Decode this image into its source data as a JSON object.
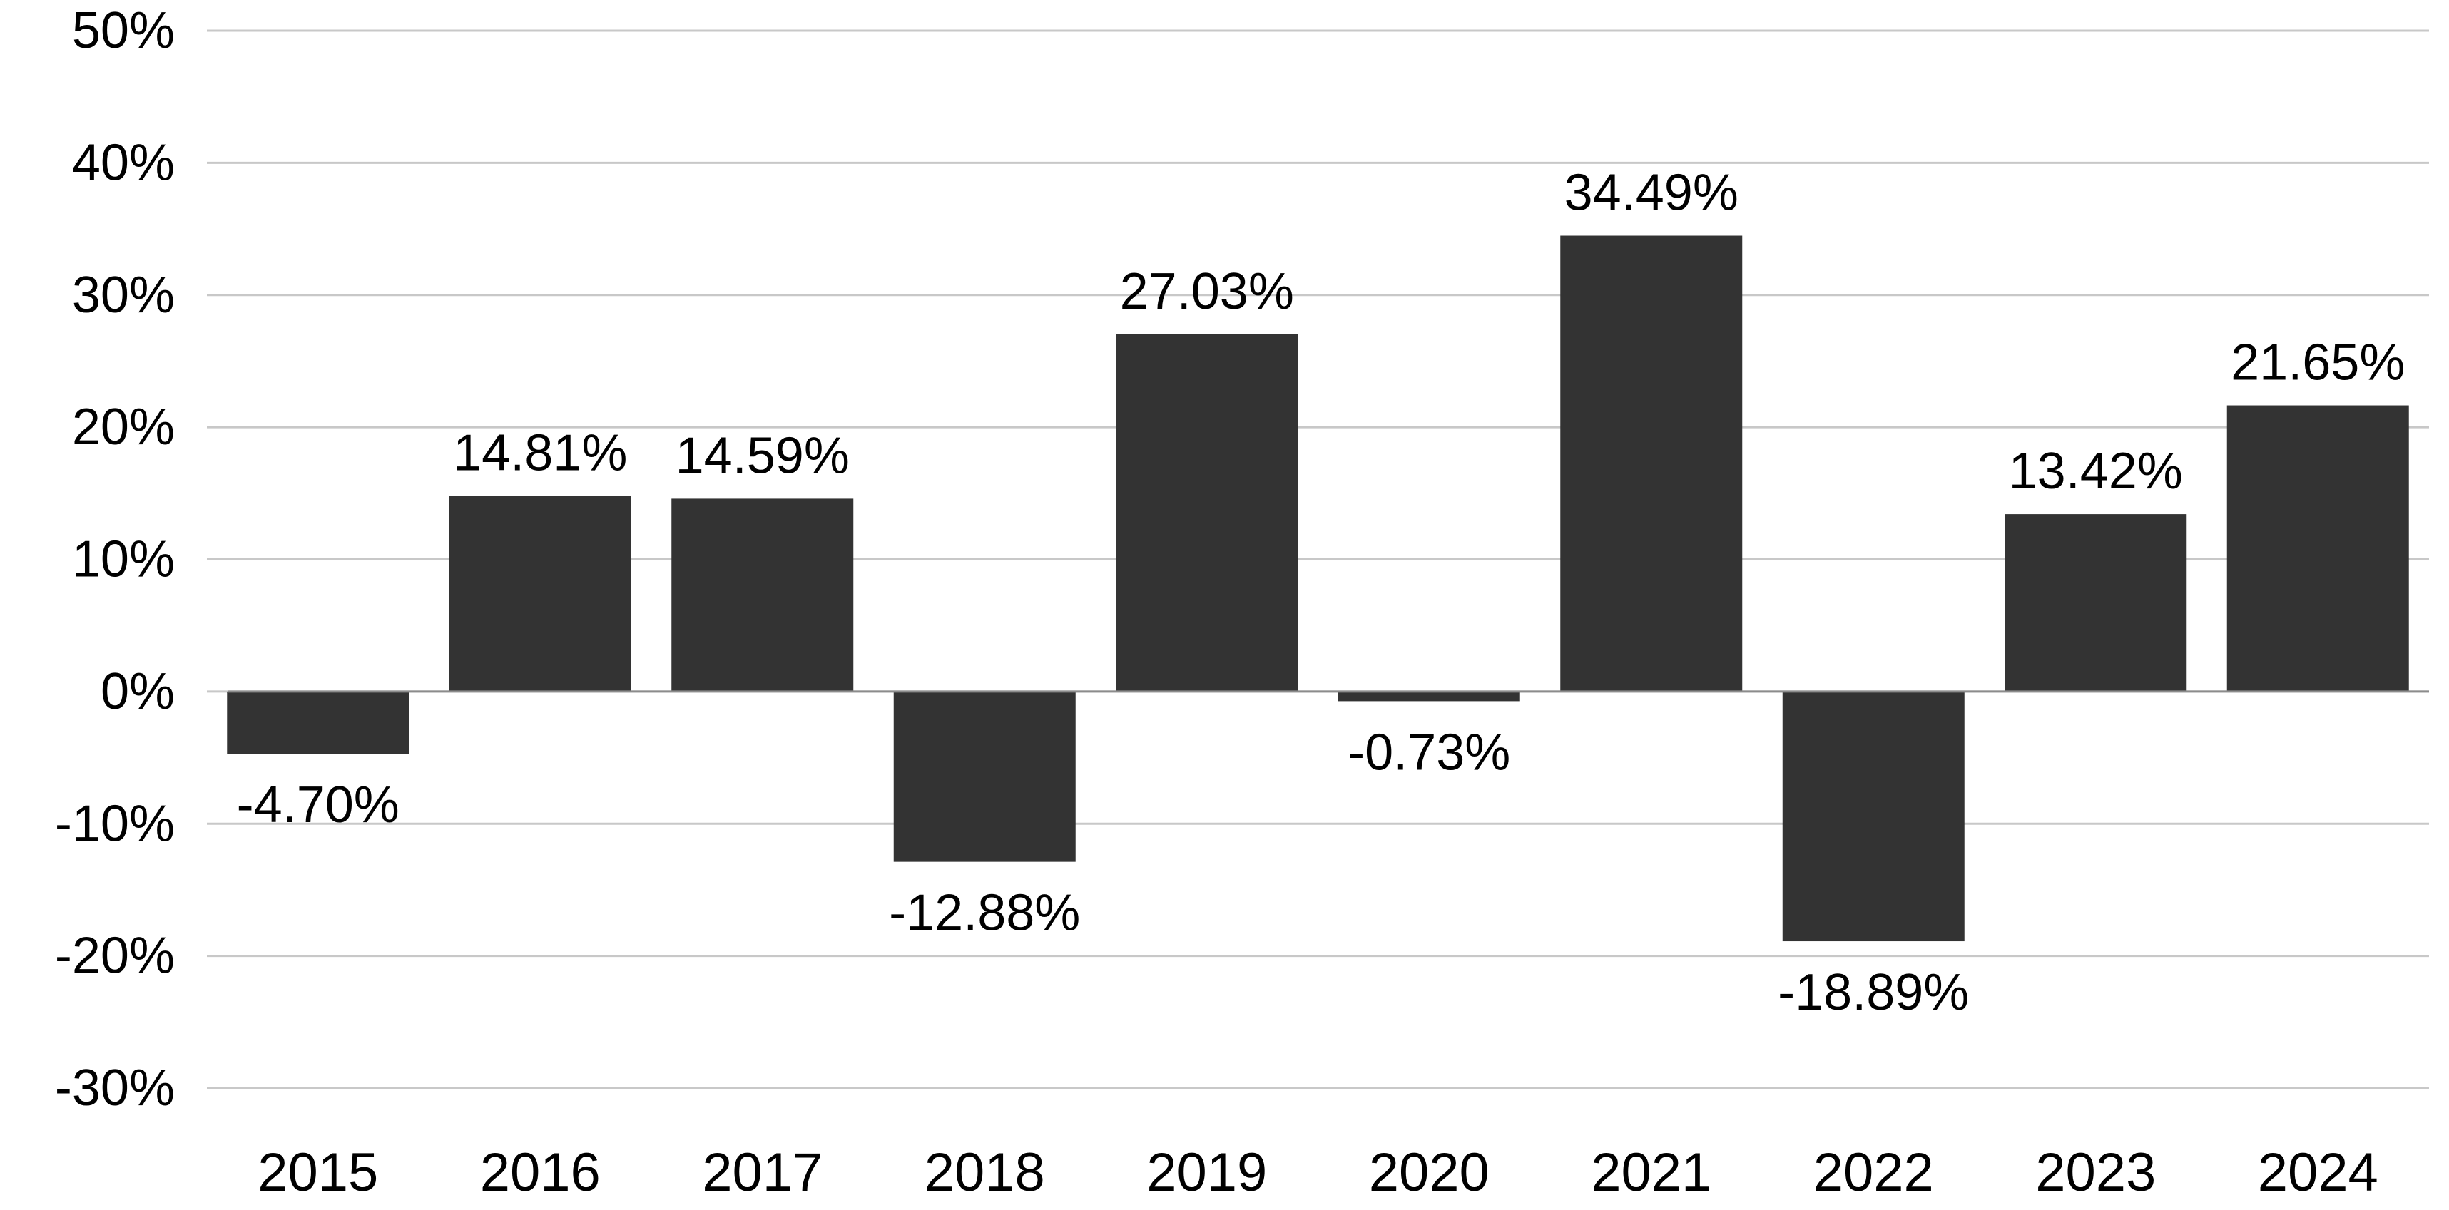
{
  "chart_data": {
    "type": "bar",
    "title": "",
    "xlabel": "",
    "ylabel": "",
    "categories": [
      "2015",
      "2016",
      "2017",
      "2018",
      "2019",
      "2020",
      "2021",
      "2022",
      "2023",
      "2024"
    ],
    "values": [
      -4.7,
      14.81,
      14.59,
      -12.88,
      27.03,
      -0.73,
      34.49,
      -18.89,
      13.42,
      21.65
    ],
    "data_labels": [
      "-4.70%",
      "14.81%",
      "14.59%",
      "-12.88%",
      "27.03%",
      "-0.73%",
      "34.49%",
      "-18.89%",
      "13.42%",
      "21.65%"
    ],
    "ylim": [
      -30,
      50
    ],
    "yticks": [
      50,
      40,
      30,
      20,
      10,
      0,
      -10,
      -20,
      -30
    ],
    "ytick_labels": [
      "50%",
      "40%",
      "30%",
      "20%",
      "10%",
      "0%",
      "-10%",
      "-20%",
      "-30%"
    ],
    "grid": true,
    "legend": "none",
    "colors": {
      "bar": "#333333",
      "grid": "#c8c8c8",
      "zero_line": "#8c8c8c",
      "text": "#000000"
    }
  }
}
